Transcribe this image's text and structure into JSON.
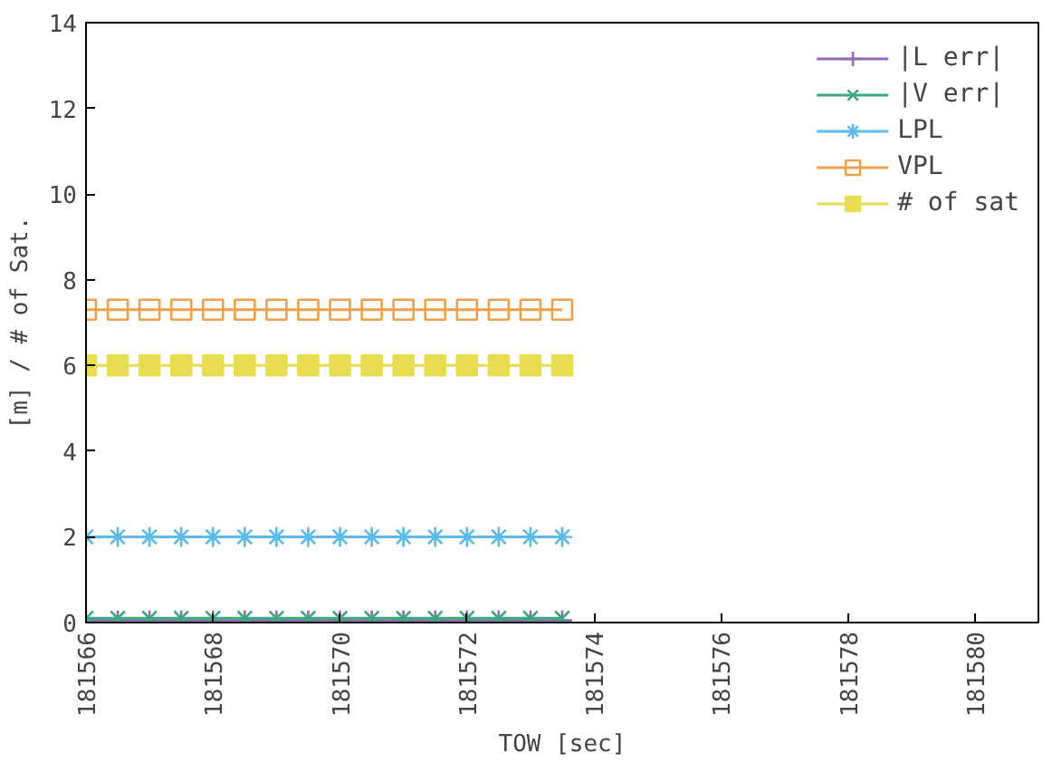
{
  "chart_data": {
    "type": "line",
    "xlabel": "TOW [sec]",
    "ylabel": "[m] / # of Sat.",
    "x": [
      181566,
      181566.5,
      181567,
      181567.5,
      181568,
      181568.5,
      181569,
      181569.5,
      181570,
      181570.5,
      181571,
      181571.5,
      181572,
      181572.5,
      181573,
      181573.5
    ],
    "xlim": [
      181566,
      181581
    ],
    "xticks": [
      181566,
      181568,
      181570,
      181572,
      181574,
      181576,
      181578,
      181580
    ],
    "ylim": [
      0,
      14
    ],
    "yticks": [
      0,
      2,
      4,
      6,
      8,
      10,
      12,
      14
    ],
    "series": [
      {
        "name": "|L err|",
        "color": "#9467bd",
        "marker": "cross",
        "values": [
          0.05,
          0.05,
          0.05,
          0.05,
          0.05,
          0.05,
          0.05,
          0.05,
          0.05,
          0.05,
          0.05,
          0.05,
          0.05,
          0.05,
          0.05,
          0.05
        ]
      },
      {
        "name": "|V err|",
        "color": "#3aa97e",
        "marker": "x",
        "values": [
          0.1,
          0.1,
          0.1,
          0.1,
          0.1,
          0.1,
          0.1,
          0.1,
          0.1,
          0.1,
          0.1,
          0.1,
          0.1,
          0.1,
          0.1,
          0.1
        ]
      },
      {
        "name": "LPL",
        "color": "#5bbbeb",
        "marker": "cross",
        "values": [
          2,
          2,
          2,
          2,
          2,
          2,
          2,
          2,
          2,
          2,
          2,
          2,
          2,
          2,
          2,
          2
        ]
      },
      {
        "name": "VPL",
        "color": "#f0a04b",
        "marker": "square",
        "values": [
          7.3,
          7.3,
          7.3,
          7.3,
          7.3,
          7.3,
          7.3,
          7.3,
          7.3,
          7.3,
          7.3,
          7.3,
          7.3,
          7.3,
          7.3,
          7.3
        ]
      },
      {
        "name": "# of sat",
        "color": "#e8dc50",
        "marker": "square",
        "values": [
          6,
          6,
          6,
          6,
          6,
          6,
          6,
          6,
          6,
          6,
          6,
          6,
          6,
          6,
          6,
          6
        ]
      }
    ],
    "legend": "top right",
    "grid": false
  }
}
